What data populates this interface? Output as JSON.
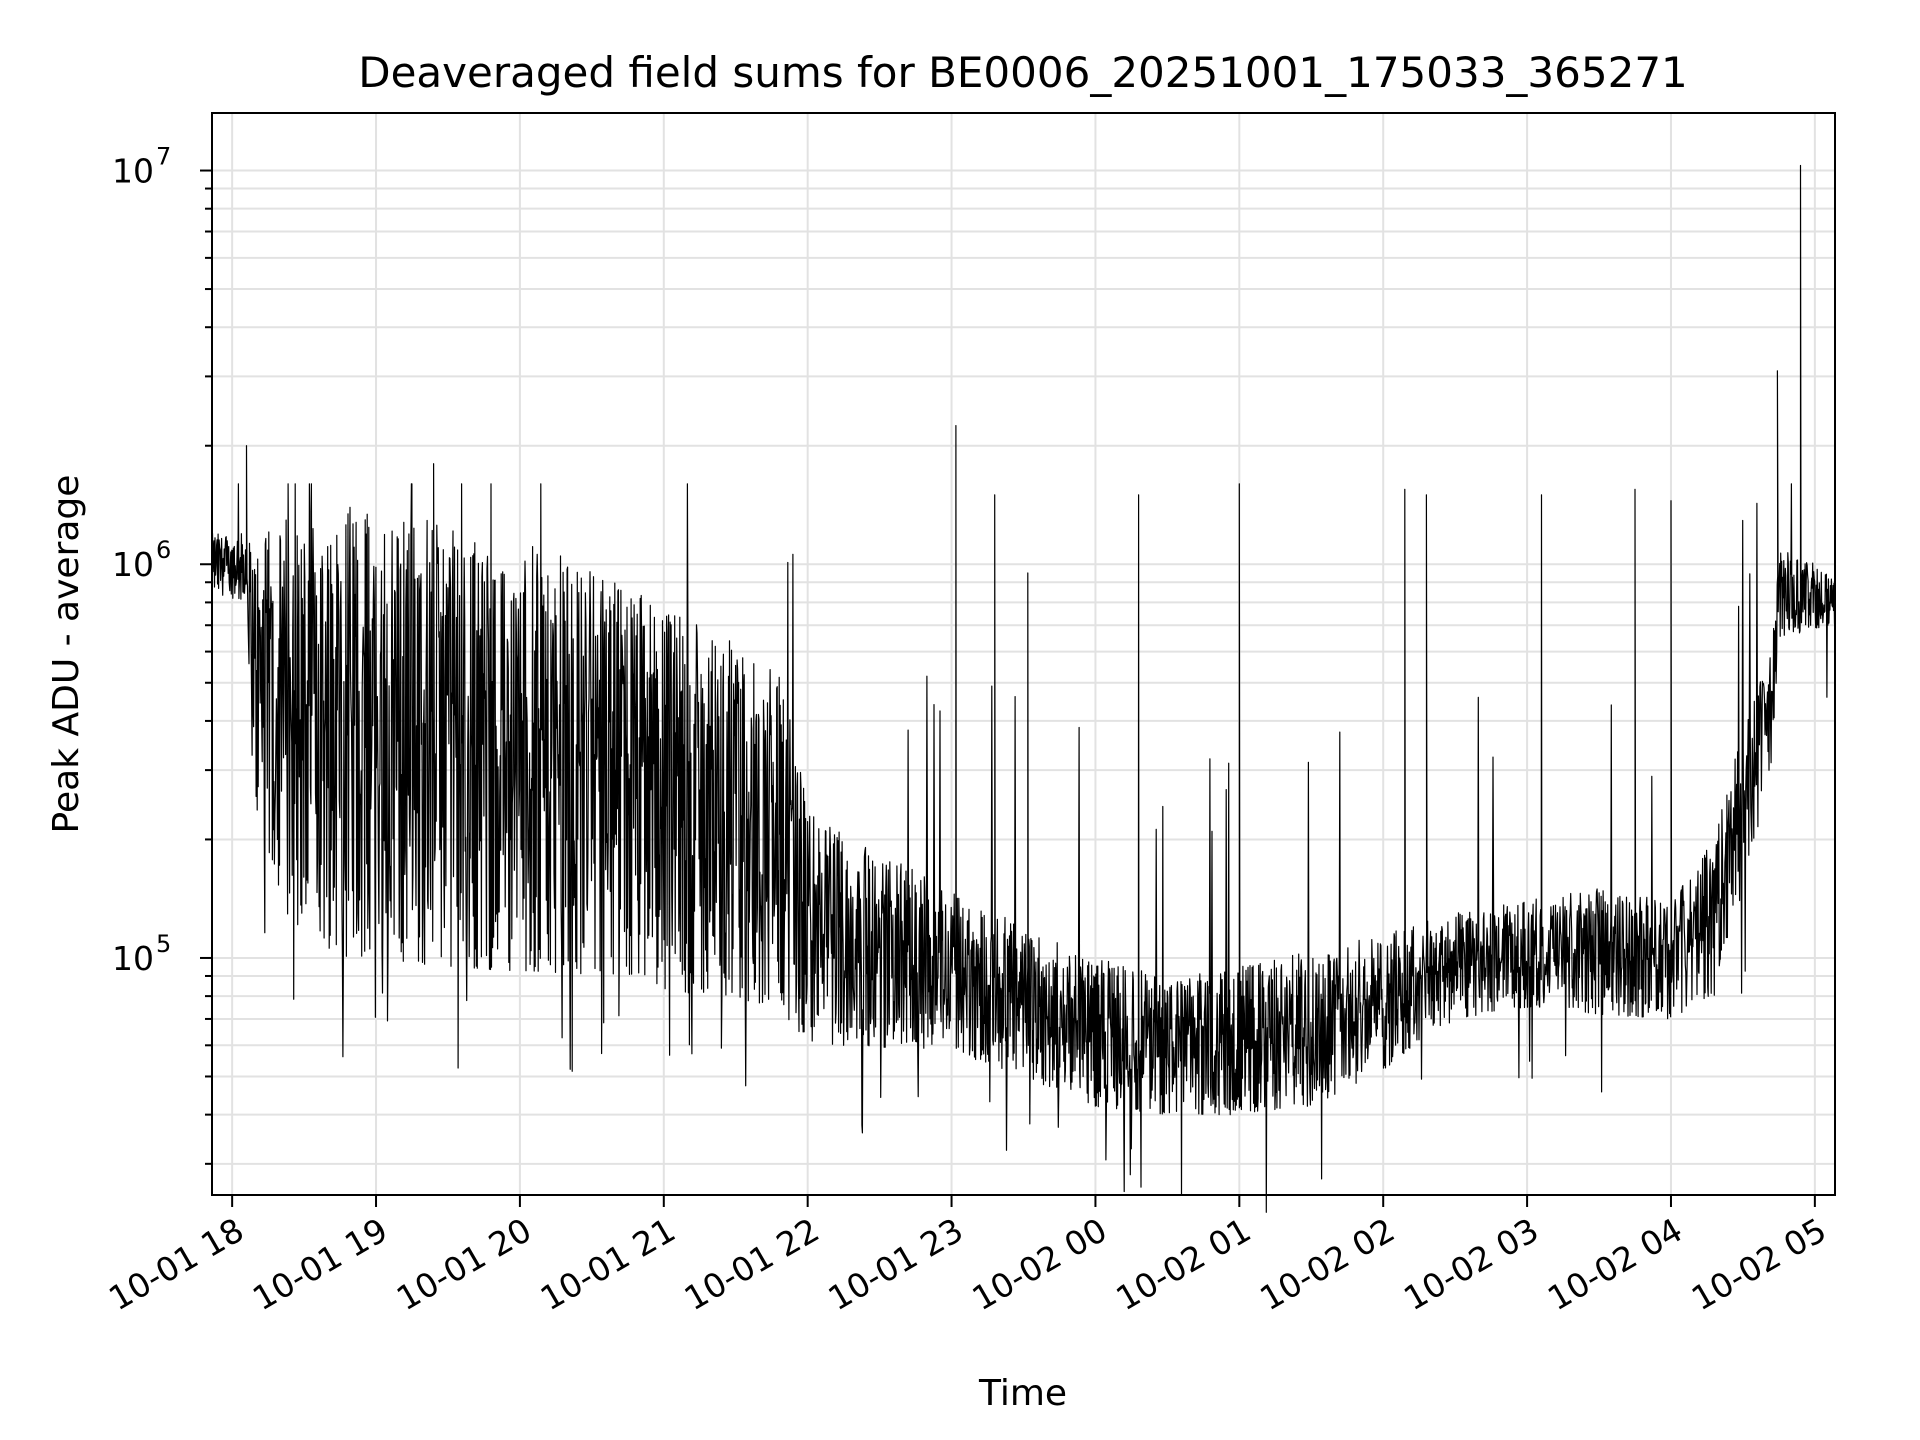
{
  "chart_data": {
    "type": "line",
    "title": "Deaveraged field sums for BE0006_20251001_175033_365271",
    "xlabel": "Time",
    "ylabel": "Peak ADU - average",
    "yscale": "log",
    "ylim": [
      25000,
      14000000
    ],
    "grid": true,
    "x_unit": "hours since 10-01 18:00",
    "xlim": [
      -0.14,
      11.14
    ],
    "x_ticks": [
      {
        "value": 0,
        "label": "10-01 18"
      },
      {
        "value": 1,
        "label": "10-01 19"
      },
      {
        "value": 2,
        "label": "10-01 20"
      },
      {
        "value": 3,
        "label": "10-01 21"
      },
      {
        "value": 4,
        "label": "10-01 22"
      },
      {
        "value": 5,
        "label": "10-01 23"
      },
      {
        "value": 6,
        "label": "10-02 00"
      },
      {
        "value": 7,
        "label": "10-02 01"
      },
      {
        "value": 8,
        "label": "10-02 02"
      },
      {
        "value": 9,
        "label": "10-02 03"
      },
      {
        "value": 10,
        "label": "10-02 04"
      },
      {
        "value": 11,
        "label": "10-02 05"
      }
    ],
    "y_ticks": [
      {
        "value": 100000,
        "base": "10",
        "exp": "5"
      },
      {
        "value": 1000000,
        "base": "10",
        "exp": "6"
      },
      {
        "value": 10000000,
        "base": "10",
        "exp": "7"
      }
    ],
    "series": [
      {
        "name": "Peak ADU - average",
        "color": "#000000",
        "envelope": {
          "x": [
            -0.14,
            0.1,
            0.15,
            0.4,
            0.8,
            1.5,
            2.5,
            3.3,
            3.8,
            4.0,
            4.3,
            5.0,
            5.5,
            6.0,
            6.5,
            7.0,
            7.5,
            8.0,
            8.5,
            9.0,
            9.5,
            10.0,
            10.3,
            10.5,
            10.7,
            10.75,
            11.14
          ],
          "low": [
            850000,
            800000,
            250000,
            120000,
            100000,
            95000,
            90000,
            80000,
            75000,
            60000,
            60000,
            58000,
            50000,
            42000,
            40000,
            40000,
            42000,
            52000,
            70000,
            75000,
            72000,
            70000,
            80000,
            150000,
            300000,
            650000,
            700000
          ],
          "high": [
            1200000,
            1200000,
            1100000,
            1400000,
            1450000,
            1300000,
            1000000,
            700000,
            550000,
            250000,
            200000,
            150000,
            120000,
            100000,
            90000,
            95000,
            105000,
            115000,
            130000,
            140000,
            150000,
            140000,
            200000,
            400000,
            600000,
            1100000,
            950000
          ]
        },
        "spikes": [
          {
            "x": 0.1,
            "y": 2000000
          },
          {
            "x": 1.4,
            "y": 1800000
          },
          {
            "x": 5.03,
            "y": 2250000
          },
          {
            "x": 5.3,
            "y": 1500000
          },
          {
            "x": 5.53,
            "y": 950000
          },
          {
            "x": 6.3,
            "y": 1500000
          },
          {
            "x": 7.0,
            "y": 1600000
          },
          {
            "x": 8.15,
            "y": 1550000
          },
          {
            "x": 8.3,
            "y": 1500000
          },
          {
            "x": 9.1,
            "y": 1500000
          },
          {
            "x": 9.75,
            "y": 1550000
          },
          {
            "x": 10.0,
            "y": 1450000
          },
          {
            "x": 10.74,
            "y": 3100000
          },
          {
            "x": 10.9,
            "y": 10300000
          }
        ]
      }
    ]
  }
}
